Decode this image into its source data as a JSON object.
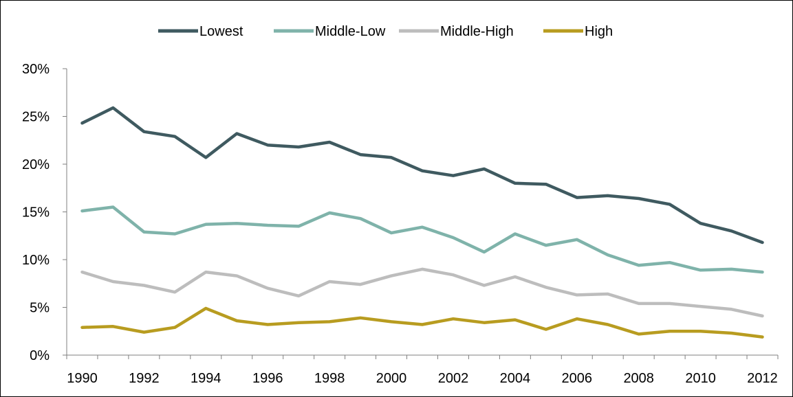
{
  "chart_data": {
    "type": "line",
    "x": [
      1990,
      1991,
      1992,
      1993,
      1994,
      1995,
      1996,
      1997,
      1998,
      1999,
      2000,
      2001,
      2002,
      2003,
      2004,
      2005,
      2006,
      2007,
      2008,
      2009,
      2010,
      2011,
      2012
    ],
    "x_tick_labels": [
      "1990",
      "1992",
      "1994",
      "1996",
      "1998",
      "2000",
      "2002",
      "2004",
      "2006",
      "2008",
      "2010",
      "2012"
    ],
    "y_tick_labels": [
      "0%",
      "5%",
      "10%",
      "15%",
      "20%",
      "25%",
      "30%"
    ],
    "ylim": [
      0,
      30
    ],
    "y_unit": "%",
    "grid": false,
    "legend_position": "top",
    "series": [
      {
        "name": "Lowest",
        "color": "#3f5a60",
        "values": [
          24.3,
          25.9,
          23.4,
          22.9,
          20.7,
          23.2,
          22.0,
          21.8,
          22.3,
          21.0,
          20.7,
          19.3,
          18.8,
          19.5,
          18.0,
          17.9,
          16.5,
          16.7,
          16.4,
          15.8,
          13.8,
          13.0,
          11.8
        ]
      },
      {
        "name": "Middle-Low",
        "color": "#7fb3aa",
        "values": [
          15.1,
          15.5,
          12.9,
          12.7,
          13.7,
          13.8,
          13.6,
          13.5,
          14.9,
          14.3,
          12.8,
          13.4,
          12.3,
          10.8,
          12.7,
          11.5,
          12.1,
          10.5,
          9.4,
          9.7,
          8.9,
          9.0,
          8.7
        ]
      },
      {
        "name": "Middle-High",
        "color": "#bdbdbd",
        "values": [
          8.7,
          7.7,
          7.3,
          6.6,
          8.7,
          8.3,
          7.0,
          6.2,
          7.7,
          7.4,
          8.3,
          9.0,
          8.4,
          7.3,
          8.2,
          7.1,
          6.3,
          6.4,
          5.4,
          5.4,
          5.1,
          4.8,
          4.1
        ]
      },
      {
        "name": "High",
        "color": "#b89c20",
        "values": [
          2.9,
          3.0,
          2.4,
          2.9,
          4.9,
          3.6,
          3.2,
          3.4,
          3.5,
          3.9,
          3.5,
          3.2,
          3.8,
          3.4,
          3.7,
          2.7,
          3.8,
          3.2,
          2.2,
          2.5,
          2.5,
          2.3,
          1.9
        ]
      }
    ]
  }
}
